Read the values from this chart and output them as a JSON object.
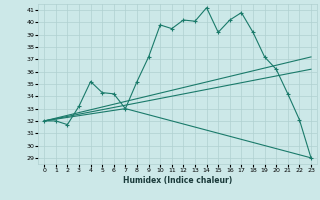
{
  "xlabel": "Humidex (Indice chaleur)",
  "ylabel": "",
  "bg_color": "#cce8e8",
  "grid_color": "#b0d0d0",
  "line_color": "#1a7a6a",
  "xlim": [
    -0.5,
    23.5
  ],
  "ylim": [
    28.5,
    41.5
  ],
  "xticks": [
    0,
    1,
    2,
    3,
    4,
    5,
    6,
    7,
    8,
    9,
    10,
    11,
    12,
    13,
    14,
    15,
    16,
    17,
    18,
    19,
    20,
    21,
    22,
    23
  ],
  "yticks": [
    29,
    30,
    31,
    32,
    33,
    34,
    35,
    36,
    37,
    38,
    39,
    40,
    41
  ],
  "series": [
    {
      "x": [
        0,
        1,
        2,
        3,
        4,
        5,
        6,
        7,
        8,
        9,
        10,
        11,
        12,
        13,
        14,
        15,
        16,
        17,
        18,
        19,
        20,
        21,
        22,
        23
      ],
      "y": [
        32.0,
        32.0,
        31.7,
        33.2,
        35.2,
        34.3,
        34.2,
        33.0,
        35.2,
        37.2,
        39.8,
        39.5,
        40.2,
        40.1,
        41.2,
        39.2,
        40.2,
        40.8,
        39.2,
        37.2,
        36.2,
        34.2,
        32.1,
        29.0
      ]
    },
    {
      "x": [
        0,
        7,
        23
      ],
      "y": [
        32.0,
        33.0,
        29.0
      ]
    },
    {
      "x": [
        0,
        23
      ],
      "y": [
        32.0,
        36.2
      ]
    },
    {
      "x": [
        0,
        23
      ],
      "y": [
        32.0,
        37.2
      ]
    }
  ]
}
